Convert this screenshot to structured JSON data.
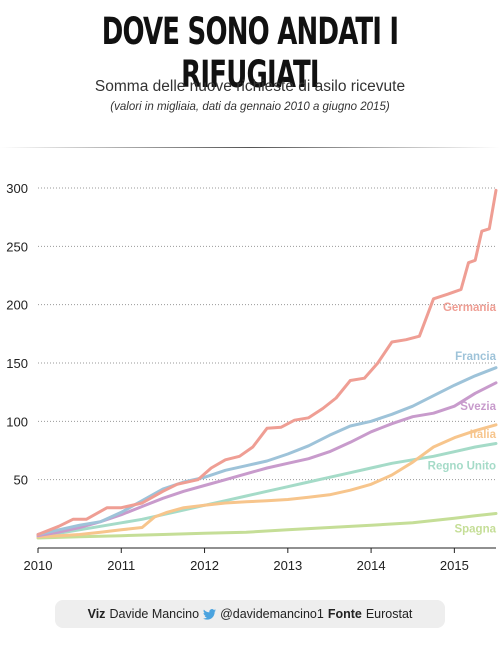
{
  "header": {
    "title": "DOVE SONO ANDATI I RIFUGIATI",
    "subtitle": "Somma delle nuove richieste di asilo ricevute",
    "note": "(valori in migliaia, dati da gennaio 2010 a giugno 2015)"
  },
  "footer": {
    "viz_label": "Viz",
    "author": "Davide Mancino",
    "twitter_icon": "twitter-bird-icon",
    "handle": "@davidemancino1",
    "source_label": "Fonte",
    "source": "Eurostat"
  },
  "chart_data": {
    "type": "line",
    "x_unit": "year",
    "xlim": [
      2010.0,
      2015.5
    ],
    "ylim": [
      0,
      300
    ],
    "yticks": [
      50,
      100,
      150,
      200,
      250,
      300
    ],
    "xticks": [
      "2010",
      "2011",
      "2012",
      "2013",
      "2014",
      "2015"
    ],
    "grid": true,
    "legend": "inline labels at right end of each line",
    "series": [
      {
        "name": "Germania",
        "color": "#ef9e94",
        "x": [
          2010.0,
          2010.25,
          2010.42,
          2010.58,
          2010.83,
          2011.0,
          2011.25,
          2011.5,
          2011.67,
          2011.92,
          2012.08,
          2012.25,
          2012.42,
          2012.58,
          2012.75,
          2012.92,
          2013.08,
          2013.25,
          2013.42,
          2013.58,
          2013.75,
          2013.92,
          2014.08,
          2014.25,
          2014.42,
          2014.58,
          2014.75,
          2014.92,
          2015.0,
          2015.08,
          2015.17,
          2015.25,
          2015.33,
          2015.42,
          2015.5
        ],
        "y": [
          3,
          10,
          16,
          16,
          26,
          26,
          30,
          40,
          46,
          50,
          60,
          67,
          70,
          78,
          94,
          95,
          101,
          103,
          111,
          120,
          135,
          137,
          150,
          168,
          170,
          173,
          205,
          209,
          211,
          213,
          236,
          238,
          263,
          265,
          298
        ]
      },
      {
        "name": "Francia",
        "color": "#9ec3d9",
        "x": [
          2010.0,
          2010.25,
          2010.5,
          2010.75,
          2011.0,
          2011.25,
          2011.5,
          2011.75,
          2012.0,
          2012.25,
          2012.5,
          2012.75,
          2013.0,
          2013.25,
          2013.5,
          2013.75,
          2014.0,
          2014.25,
          2014.5,
          2014.75,
          2015.0,
          2015.25,
          2015.5
        ],
        "y": [
          3,
          7,
          11,
          14,
          22,
          32,
          42,
          48,
          52,
          58,
          62,
          66,
          72,
          79,
          88,
          96,
          100,
          106,
          113,
          122,
          131,
          139,
          146
        ]
      },
      {
        "name": "Svezia",
        "color": "#c89bcc",
        "x": [
          2010.0,
          2010.25,
          2010.5,
          2010.75,
          2011.0,
          2011.25,
          2011.5,
          2011.75,
          2012.0,
          2012.25,
          2012.5,
          2012.75,
          2013.0,
          2013.25,
          2013.5,
          2013.75,
          2014.0,
          2014.25,
          2014.5,
          2014.75,
          2015.0,
          2015.25,
          2015.5
        ],
        "y": [
          2,
          5,
          9,
          14,
          20,
          27,
          34,
          40,
          45,
          50,
          55,
          60,
          64,
          68,
          74,
          82,
          91,
          98,
          104,
          107,
          113,
          124,
          133
        ]
      },
      {
        "name": "Italia",
        "color": "#f7c58c",
        "x": [
          2010.0,
          2010.25,
          2010.5,
          2010.75,
          2011.0,
          2011.25,
          2011.4,
          2011.55,
          2011.75,
          2012.0,
          2012.25,
          2012.5,
          2012.75,
          2013.0,
          2013.25,
          2013.5,
          2013.75,
          2014.0,
          2014.25,
          2014.5,
          2014.75,
          2015.0,
          2015.25,
          2015.5
        ],
        "y": [
          1,
          2,
          3,
          5,
          7,
          9,
          18,
          22,
          26,
          28,
          30,
          31,
          32,
          33,
          35,
          37,
          41,
          46,
          54,
          65,
          78,
          86,
          92,
          97
        ]
      },
      {
        "name": "Regno Unito",
        "color": "#a5dbc8",
        "x": [
          2010.0,
          2010.25,
          2010.5,
          2010.75,
          2011.0,
          2011.25,
          2011.5,
          2011.75,
          2012.0,
          2012.25,
          2012.5,
          2012.75,
          2013.0,
          2013.25,
          2013.5,
          2013.75,
          2014.0,
          2014.25,
          2014.5,
          2014.75,
          2015.0,
          2015.25,
          2015.5
        ],
        "y": [
          2,
          4,
          7,
          10,
          13,
          16,
          20,
          24,
          28,
          32,
          36,
          40,
          44,
          48,
          52,
          56,
          60,
          64,
          67,
          70,
          74,
          78,
          81
        ]
      },
      {
        "name": "Spagna",
        "color": "#c5de97",
        "x": [
          2010.0,
          2010.5,
          2011.0,
          2011.5,
          2012.0,
          2012.5,
          2013.0,
          2013.5,
          2014.0,
          2014.5,
          2015.0,
          2015.25,
          2015.5
        ],
        "y": [
          0,
          1,
          2,
          3,
          4,
          5,
          7,
          9,
          11,
          13,
          17,
          19,
          21
        ]
      }
    ]
  }
}
